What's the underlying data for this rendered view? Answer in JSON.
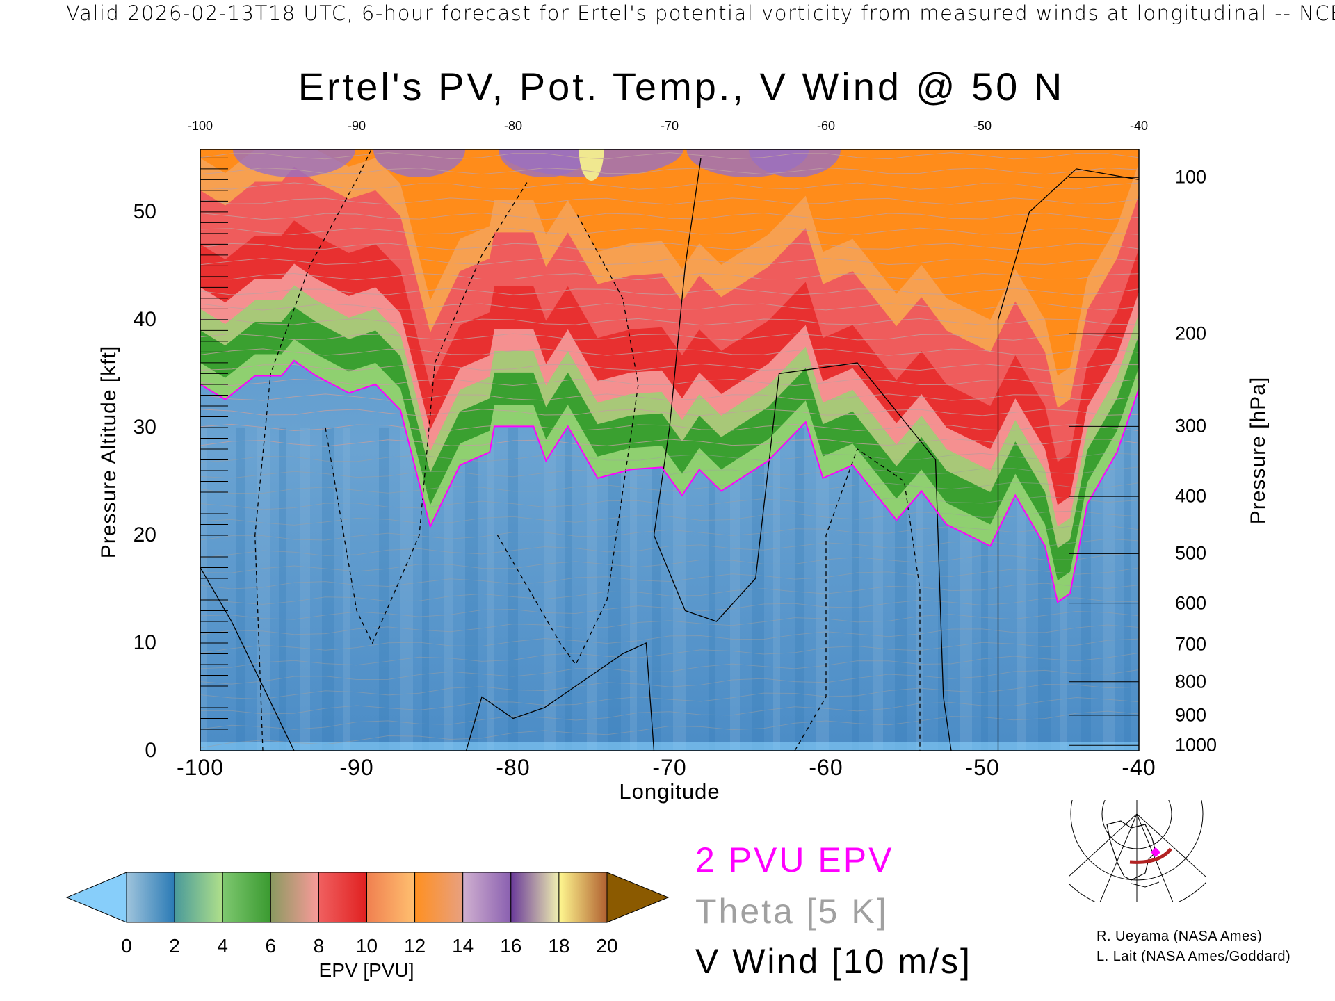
{
  "header": "Valid 2026-02-13T18 UTC, 6-hour forecast for Ertel's potential vorticity from measured winds at longitudinal -- NCE",
  "chart_data": {
    "type": "heatmap",
    "title": "Ertel's PV, Pot. Temp., V Wind @ 50 N",
    "xlabel": "Longitude",
    "ylabel": "Pressure Altitude [kft]",
    "y2label": "Pressure [hPa]",
    "xlim": [
      -100,
      -40
    ],
    "ylim": [
      0,
      55.8
    ],
    "x_ticks": [
      "-100",
      "-90",
      "-80",
      "-70",
      "-60",
      "-50",
      "-40"
    ],
    "x_tick_values": [
      -100,
      -90,
      -80,
      -70,
      -60,
      -50,
      -40
    ],
    "y_ticks": [
      "0",
      "10",
      "20",
      "30",
      "40",
      "50"
    ],
    "y_tick_values": [
      0,
      10,
      20,
      30,
      40,
      50
    ],
    "pressure_ticks": [
      {
        "label": "100",
        "kft": 53.2
      },
      {
        "label": "200",
        "kft": 38.7
      },
      {
        "label": "300",
        "kft": 30.1
      },
      {
        "label": "400",
        "kft": 23.6
      },
      {
        "label": "500",
        "kft": 18.3
      },
      {
        "label": "600",
        "kft": 13.7
      },
      {
        "label": "700",
        "kft": 9.9
      },
      {
        "label": "800",
        "kft": 6.4
      },
      {
        "label": "900",
        "kft": 3.3
      },
      {
        "label": "1000",
        "kft": 0.5
      }
    ],
    "tropopause_2pvu": [
      [
        -100,
        34
      ],
      [
        -98.4,
        32.6
      ],
      [
        -96.5,
        34.8
      ],
      [
        -94.8,
        34.8
      ],
      [
        -94,
        36.2
      ],
      [
        -92.6,
        34.8
      ],
      [
        -90.5,
        33.2
      ],
      [
        -88.8,
        34
      ],
      [
        -87.2,
        31.6
      ],
      [
        -85.3,
        20.8
      ],
      [
        -83.4,
        26.5
      ],
      [
        -81.5,
        27.7
      ],
      [
        -81.2,
        30.1
      ],
      [
        -78.7,
        30.1
      ],
      [
        -77.9,
        26.9
      ],
      [
        -76.5,
        30.1
      ],
      [
        -74.6,
        25.3
      ],
      [
        -72.5,
        26.1
      ],
      [
        -70.5,
        26.3
      ],
      [
        -69.2,
        23.7
      ],
      [
        -68.1,
        26.1
      ],
      [
        -66.7,
        24.1
      ],
      [
        -63.7,
        26.9
      ],
      [
        -61.3,
        30.5
      ],
      [
        -60.2,
        25.3
      ],
      [
        -58.3,
        26.5
      ],
      [
        -55.5,
        21.4
      ],
      [
        -53.9,
        24.1
      ],
      [
        -52.3,
        21
      ],
      [
        -49.5,
        19
      ],
      [
        -47.9,
        23.7
      ],
      [
        -46,
        19
      ],
      [
        -45.2,
        13.8
      ],
      [
        -44.4,
        14.6
      ],
      [
        -43.3,
        22.9
      ],
      [
        -41.4,
        27.7
      ],
      [
        -40,
        33.6
      ]
    ],
    "colorbar": {
      "label": "EPV [PVU]",
      "ticks": [
        "0",
        "2",
        "4",
        "6",
        "8",
        "10",
        "12",
        "14",
        "16",
        "18",
        "20"
      ],
      "range": [
        0,
        20
      ],
      "under_color": "#87cefa",
      "over_color": "#8b5a00",
      "segments": [
        [
          "#9fc4dc",
          "#2a7ab5"
        ],
        [
          "#4a9a9a",
          "#b0e08a"
        ],
        [
          "#7ec870",
          "#3a9a30"
        ],
        [
          "#8a9a60",
          "#fa9a9a"
        ],
        [
          "#f06060",
          "#e02020"
        ],
        [
          "#f08050",
          "#ffc070"
        ],
        [
          "#ff9020",
          "#e8a080"
        ],
        [
          "#d0b0d0",
          "#8a60b0"
        ],
        [
          "#6a3a9a",
          "#f0f0b0"
        ],
        [
          "#fff890",
          "#b06030"
        ]
      ]
    },
    "legend": {
      "epv": "2 PVU EPV",
      "theta": "Theta [5 K]",
      "vwind": "V Wind [10 m/s]",
      "epv_color": "#ff00ff",
      "theta_color": "#a0a0a0",
      "vwind_color": "#000000"
    }
  },
  "credits": [
    "R. Ueyama (NASA Ames)",
    "L. Lait (NASA Ames/Goddard)"
  ]
}
